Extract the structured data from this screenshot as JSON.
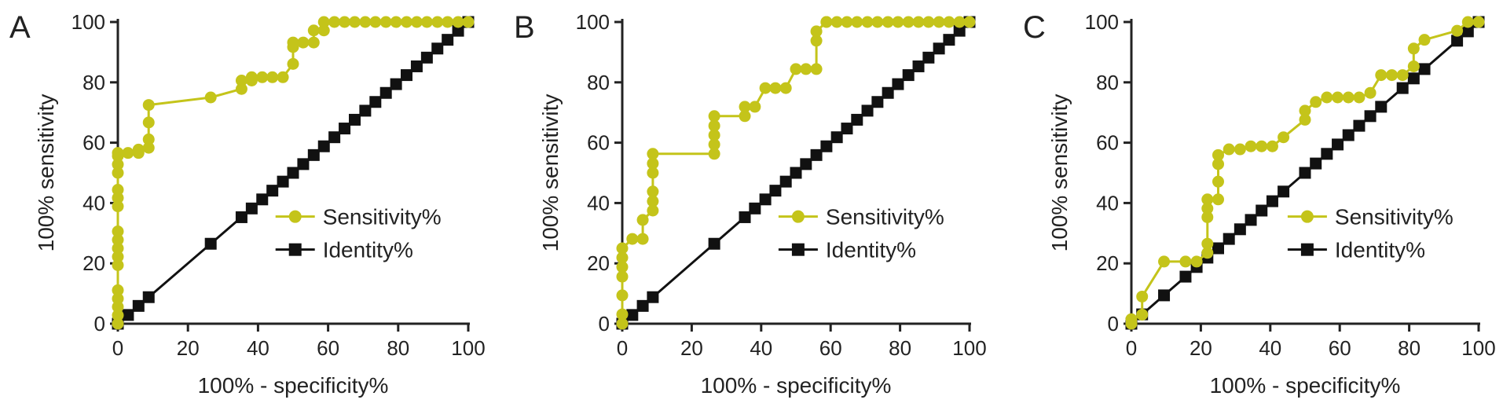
{
  "colors": {
    "sensitivity": "#c4c41a",
    "identity": "#111111",
    "axis": "#222222"
  },
  "chart_data": [
    {
      "panel_label": "A",
      "type": "line",
      "xlabel": "100% - specificity%",
      "ylabel": "100% sensitivity",
      "xlim": [
        0,
        100
      ],
      "ylim": [
        0,
        100
      ],
      "xticks": [
        0,
        20,
        40,
        60,
        80,
        100
      ],
      "yticks": [
        0,
        20,
        40,
        60,
        80,
        100
      ],
      "grid": false,
      "legend_position": "bottom-right",
      "series": [
        {
          "name": "Sensitivity%",
          "marker": "circle",
          "x": [
            0,
            0,
            0,
            0,
            0,
            0,
            0,
            0,
            0,
            0,
            0,
            0,
            0,
            0,
            0,
            0,
            0,
            2.9,
            5.9,
            5.9,
            8.8,
            8.8,
            8.8,
            8.8,
            26.5,
            35.3,
            35.3,
            38.2,
            38.2,
            41.2,
            44.1,
            47.1,
            50,
            50,
            50,
            52.9,
            55.9,
            55.9,
            58.8,
            58.8,
            61.8,
            64.7,
            67.6,
            70.6,
            73.5,
            76.5,
            79.4,
            82.4,
            85.3,
            88.2,
            91.2,
            94.1,
            97.1,
            100
          ],
          "y": [
            0,
            2.8,
            5.6,
            8.3,
            11.1,
            19.4,
            22.2,
            25,
            27.8,
            30.6,
            38.9,
            41.7,
            44.4,
            50,
            52.8,
            55.6,
            56.6,
            56.6,
            56.6,
            57.7,
            58.3,
            61.1,
            66.7,
            72.5,
            75,
            77.8,
            80.6,
            80.6,
            81.7,
            81.7,
            81.7,
            81.7,
            86.1,
            91.7,
            93.2,
            93.2,
            93.2,
            97.2,
            97.2,
            100,
            100,
            100,
            100,
            100,
            100,
            100,
            100,
            100,
            100,
            100,
            100,
            100,
            100,
            100
          ]
        },
        {
          "name": "Identity%",
          "marker": "square",
          "x": [
            0,
            2.9,
            5.9,
            8.8,
            26.5,
            35.3,
            38.2,
            41.2,
            44.1,
            47.1,
            50,
            52.9,
            55.9,
            58.8,
            61.8,
            64.7,
            67.6,
            70.6,
            73.5,
            76.5,
            79.4,
            82.4,
            85.3,
            88.2,
            91.2,
            94.1,
            97.1,
            100
          ],
          "y": [
            0,
            2.9,
            5.9,
            8.8,
            26.5,
            35.3,
            38.2,
            41.2,
            44.1,
            47.1,
            50,
            52.9,
            55.9,
            58.8,
            61.8,
            64.7,
            67.6,
            70.6,
            73.5,
            76.5,
            79.4,
            82.4,
            85.3,
            88.2,
            91.2,
            94.1,
            97.1,
            100
          ]
        }
      ]
    },
    {
      "panel_label": "B",
      "type": "line",
      "xlabel": "100% - specificity%",
      "ylabel": "100% sensitivity",
      "xlim": [
        0,
        100
      ],
      "ylim": [
        0,
        100
      ],
      "xticks": [
        0,
        20,
        40,
        60,
        80,
        100
      ],
      "yticks": [
        0,
        20,
        40,
        60,
        80,
        100
      ],
      "grid": false,
      "legend_position": "bottom-right",
      "series": [
        {
          "name": "Sensitivity%",
          "marker": "circle",
          "x": [
            0,
            0,
            0,
            0,
            0,
            0,
            0,
            2.9,
            5.9,
            5.9,
            8.8,
            8.8,
            8.8,
            8.8,
            8.8,
            8.8,
            26.5,
            26.5,
            26.5,
            26.5,
            26.5,
            35.3,
            35.3,
            38.2,
            41.2,
            44.1,
            47.1,
            50,
            52.9,
            55.9,
            55.9,
            55.9,
            58.8,
            58.8,
            61.8,
            64.7,
            67.6,
            70.6,
            73.5,
            76.5,
            79.4,
            82.4,
            85.3,
            88.2,
            91.2,
            94.1,
            97.1,
            100
          ],
          "y": [
            0,
            3.1,
            9.4,
            15.6,
            18.8,
            21.9,
            25,
            28.1,
            28.1,
            34.4,
            37.5,
            40.6,
            43.8,
            50,
            53.1,
            56.3,
            56.3,
            59.4,
            62.5,
            65.6,
            68.8,
            68.8,
            71.9,
            71.9,
            78.1,
            78.1,
            78.1,
            84.4,
            84.4,
            84.4,
            93.8,
            96.9,
            100,
            100,
            100,
            100,
            100,
            100,
            100,
            100,
            100,
            100,
            100,
            100,
            100,
            100,
            100,
            100
          ]
        },
        {
          "name": "Identity%",
          "marker": "square",
          "x": [
            0,
            2.9,
            5.9,
            8.8,
            26.5,
            35.3,
            38.2,
            41.2,
            44.1,
            47.1,
            50,
            52.9,
            55.9,
            58.8,
            61.8,
            64.7,
            67.6,
            70.6,
            73.5,
            76.5,
            79.4,
            82.4,
            85.3,
            88.2,
            91.2,
            94.1,
            97.1,
            100
          ],
          "y": [
            0,
            2.9,
            5.9,
            8.8,
            26.5,
            35.3,
            38.2,
            41.2,
            44.1,
            47.1,
            50,
            52.9,
            55.9,
            58.8,
            61.8,
            64.7,
            67.6,
            70.6,
            73.5,
            76.5,
            79.4,
            82.4,
            85.3,
            88.2,
            91.2,
            94.1,
            97.1,
            100
          ]
        }
      ]
    },
    {
      "panel_label": "C",
      "type": "line",
      "xlabel": "100% - specificity%",
      "ylabel": "100% sensitivity",
      "xlim": [
        0,
        100
      ],
      "ylim": [
        0,
        100
      ],
      "xticks": [
        0,
        20,
        40,
        60,
        80,
        100
      ],
      "yticks": [
        0,
        20,
        40,
        60,
        80,
        100
      ],
      "grid": false,
      "legend_position": "bottom-right",
      "series": [
        {
          "name": "Sensitivity%",
          "marker": "circle",
          "x": [
            0,
            0,
            3.1,
            3.1,
            9.4,
            15.6,
            18.8,
            21.9,
            21.9,
            21.9,
            21.9,
            21.9,
            25,
            25,
            25,
            25,
            28.1,
            31.3,
            34.4,
            37.5,
            40.6,
            43.8,
            50,
            50,
            53.1,
            56.3,
            59.4,
            62.5,
            65.6,
            68.8,
            71.9,
            75,
            78.1,
            81.3,
            81.3,
            84.4,
            93.8,
            96.9,
            100
          ],
          "y": [
            0,
            1.5,
            3,
            9,
            20.6,
            20.6,
            20.6,
            23.5,
            26.5,
            35.3,
            38.2,
            41.2,
            41.2,
            47.1,
            52.9,
            55.9,
            57.8,
            57.8,
            58.8,
            58.8,
            58.8,
            61.8,
            67.6,
            70.6,
            73.5,
            75,
            75,
            75,
            75,
            76.5,
            82.4,
            82.4,
            82.4,
            85.3,
            91.2,
            94.1,
            97.1,
            100,
            100
          ]
        },
        {
          "name": "Identity%",
          "marker": "square",
          "x": [
            0,
            3.1,
            9.4,
            15.6,
            18.8,
            21.9,
            25,
            28.1,
            31.3,
            34.4,
            37.5,
            40.6,
            43.8,
            50,
            53.1,
            56.3,
            59.4,
            62.5,
            65.6,
            68.8,
            71.9,
            78.1,
            81.3,
            84.4,
            93.8,
            96.9,
            100
          ],
          "y": [
            0,
            3.1,
            9.4,
            15.6,
            18.8,
            21.9,
            25,
            28.1,
            31.3,
            34.4,
            37.5,
            40.6,
            43.8,
            50,
            53.1,
            56.3,
            59.4,
            62.5,
            65.6,
            68.8,
            71.9,
            78.1,
            81.3,
            84.4,
            93.8,
            96.9,
            100
          ]
        }
      ]
    }
  ]
}
